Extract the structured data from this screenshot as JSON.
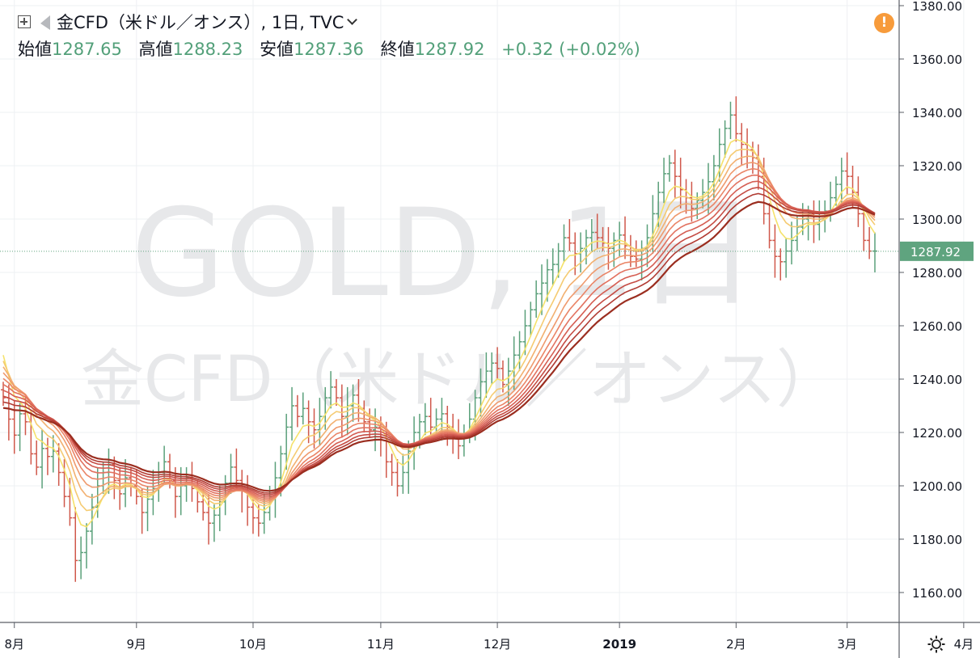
{
  "header": {
    "symbol": "金CFD（米ドル／オンス）, 1日, TVC",
    "ohlc": [
      {
        "label": "始値",
        "value": "1287.65"
      },
      {
        "label": "高値",
        "value": "1288.23"
      },
      {
        "label": "安値",
        "value": "1287.36"
      },
      {
        "label": "終値",
        "value": "1287.92"
      }
    ],
    "change": "+0.32 (+0.02%)"
  },
  "watermark": {
    "line1": "GOLD, 1日",
    "line2": "金CFD（米ドル／オンス）"
  },
  "alert_badge": "!",
  "colors": {
    "up": "#5aa07a",
    "down": "#d0584b",
    "ribbon": [
      "#f5e26b",
      "#f5cb72",
      "#f2b070",
      "#ef9a6e",
      "#ea8567",
      "#e27260",
      "#d55e53",
      "#c54c44",
      "#b13b33",
      "#9b2e20"
    ],
    "price_label_bg": "#5fa47f",
    "grid": "#eef0f3"
  },
  "chart_data": {
    "type": "ohlc",
    "y_axis": {
      "min": 1150,
      "max": 1382,
      "ticks": [
        1160,
        1180,
        1200,
        1220,
        1240,
        1260,
        1280,
        1300,
        1320,
        1340,
        1360,
        1380
      ],
      "tick_labels": [
        "1160.00",
        "1180.00",
        "1200.00",
        "1220.00",
        "1240.00",
        "1260.00",
        "1280.00",
        "1300.00",
        "1320.00",
        "1340.00",
        "1360.00",
        "1380.00"
      ],
      "position": "right"
    },
    "x_axis": {
      "labels": [
        "8月",
        "9月",
        "10月",
        "11月",
        "12月",
        "2019",
        "2月",
        "3月",
        "4月"
      ],
      "label_index": [
        2,
        24,
        45,
        68,
        89,
        111,
        132,
        152,
        173
      ]
    },
    "last_price": {
      "value": 1287.92,
      "label": "1287.92"
    },
    "closes": [
      1233,
      1225,
      1219,
      1227,
      1224,
      1212,
      1207,
      1214,
      1211,
      1213,
      1205,
      1196,
      1188,
      1172,
      1175,
      1183,
      1192,
      1200,
      1205,
      1208,
      1202,
      1197,
      1203,
      1200,
      1196,
      1190,
      1195,
      1199,
      1205,
      1209,
      1202,
      1196,
      1200,
      1203,
      1199,
      1194,
      1190,
      1186,
      1189,
      1194,
      1201,
      1207,
      1202,
      1198,
      1192,
      1188,
      1186,
      1190,
      1196,
      1203,
      1212,
      1222,
      1230,
      1226,
      1229,
      1224,
      1221,
      1226,
      1233,
      1237,
      1233,
      1226,
      1230,
      1234,
      1229,
      1224,
      1221,
      1222,
      1218,
      1209,
      1205,
      1200,
      1205,
      1213,
      1220,
      1224,
      1226,
      1222,
      1225,
      1227,
      1222,
      1218,
      1215,
      1219,
      1225,
      1233,
      1239,
      1243,
      1246,
      1244,
      1238,
      1243,
      1249,
      1254,
      1260,
      1266,
      1272,
      1276,
      1281,
      1283,
      1288,
      1293,
      1291,
      1287,
      1289,
      1293,
      1295,
      1293,
      1291,
      1289,
      1292,
      1294,
      1290,
      1286,
      1285,
      1289,
      1293,
      1302,
      1310,
      1317,
      1321,
      1316,
      1311,
      1308,
      1304,
      1307,
      1310,
      1314,
      1320,
      1328,
      1334,
      1339,
      1332,
      1328,
      1326,
      1323,
      1316,
      1302,
      1292,
      1286,
      1284,
      1288,
      1292,
      1297,
      1300,
      1302,
      1298,
      1300,
      1303,
      1308,
      1313,
      1318,
      1316,
      1310,
      1302,
      1292,
      1288,
      1288
    ]
  }
}
